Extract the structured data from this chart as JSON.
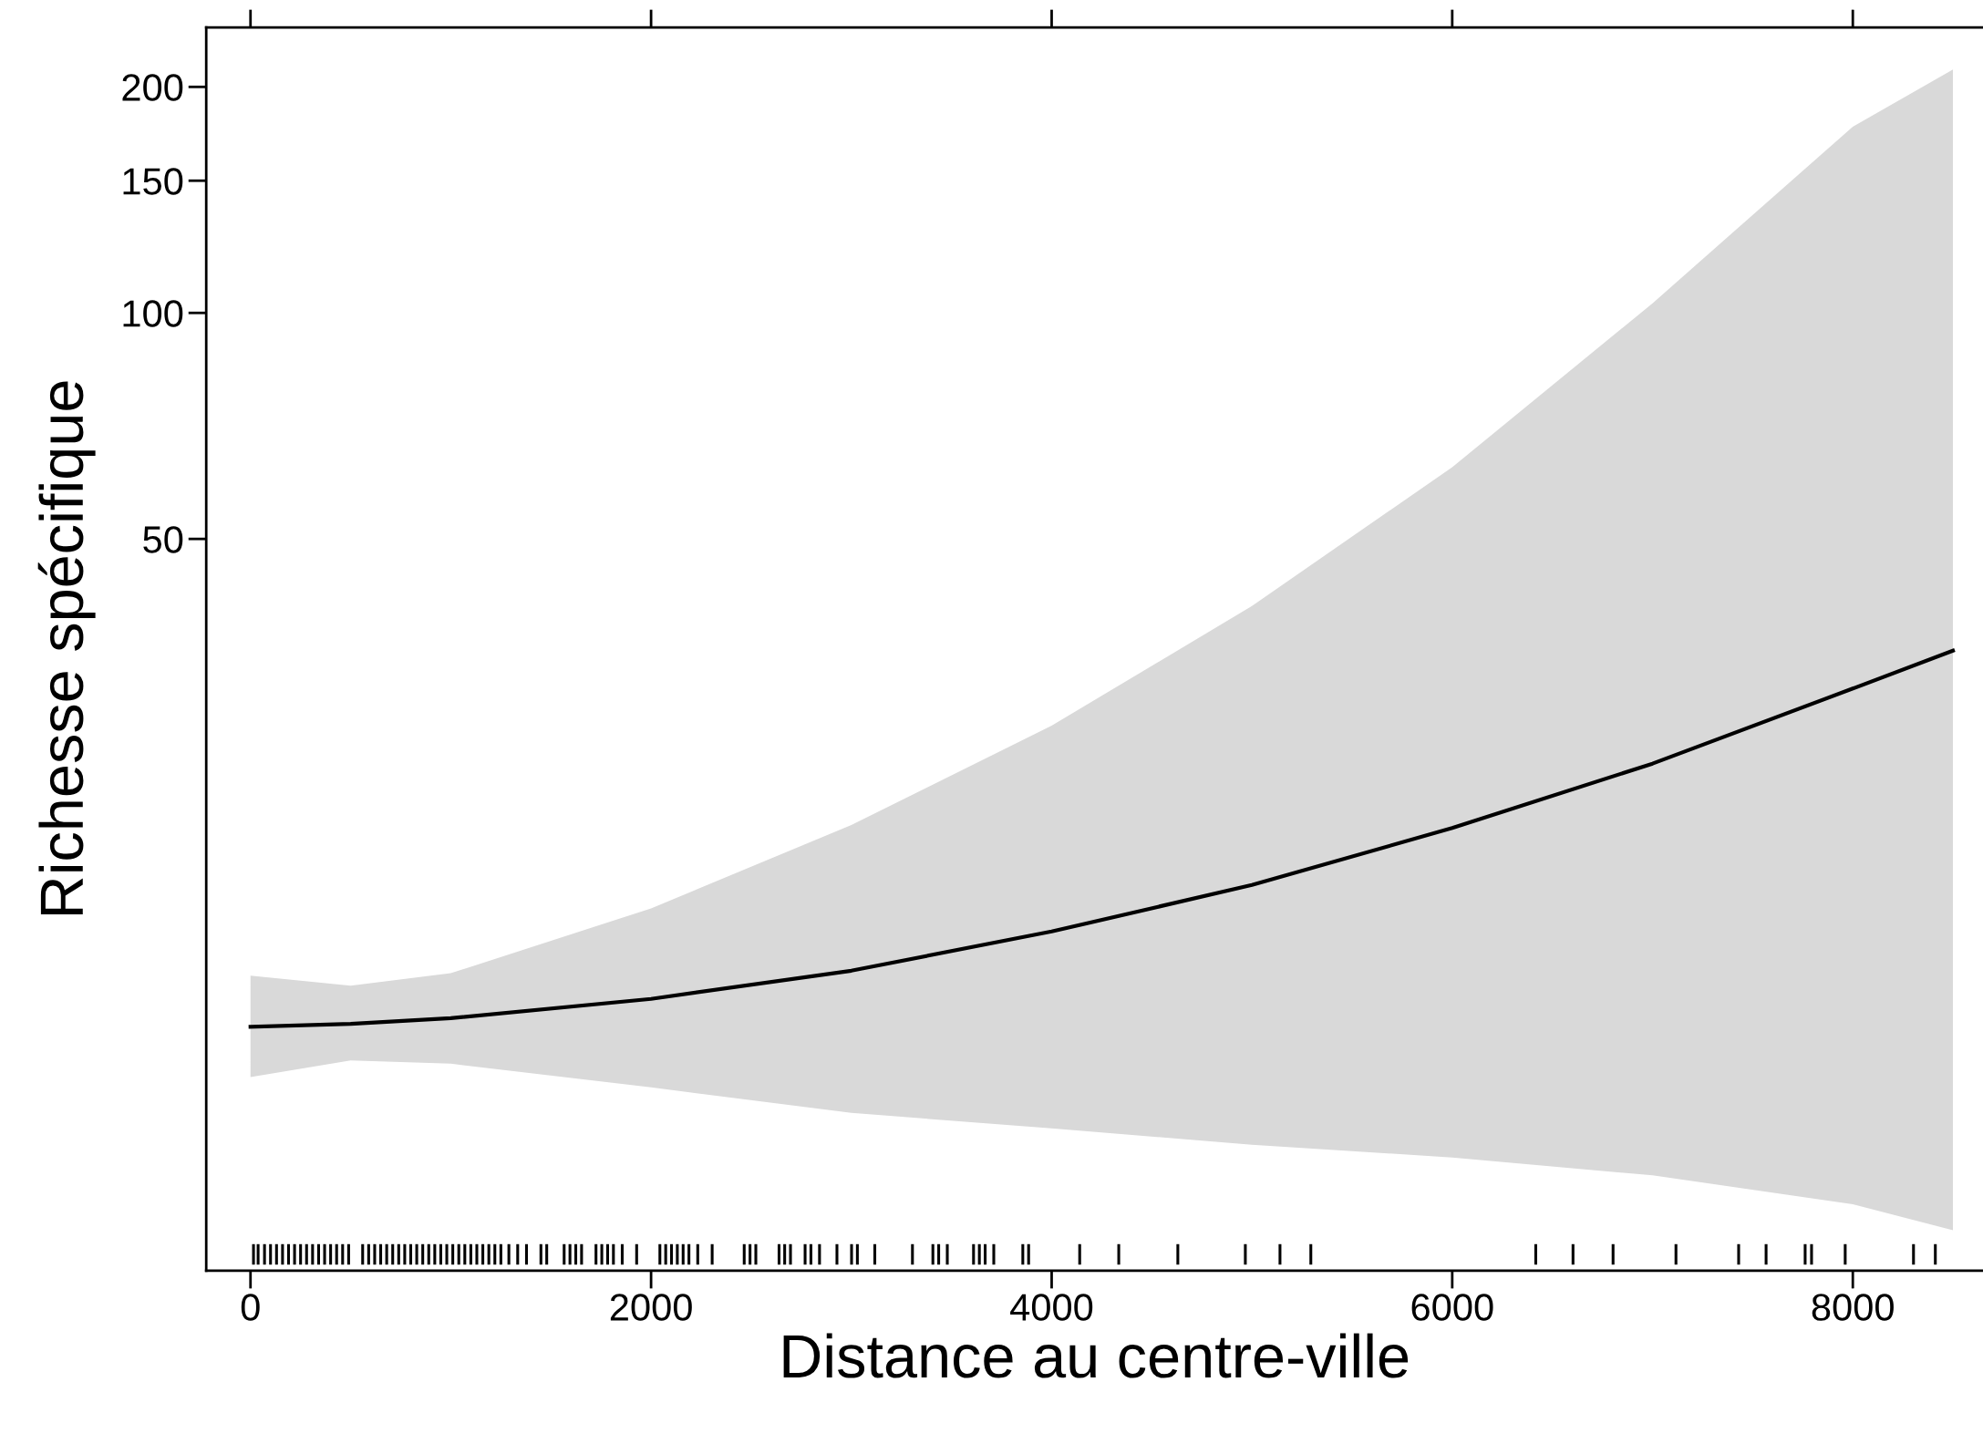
{
  "chart_data": {
    "type": "line",
    "xlabel": "Distance au centre-ville",
    "ylabel": "Richesse spécifique",
    "log": "y",
    "grid": false,
    "xlim": [
      -221,
      8650
    ],
    "ylim": [
      5.3,
      240
    ],
    "xticks": [
      0,
      2000,
      4000,
      6000,
      8000
    ],
    "yticks": [
      50,
      100,
      150,
      200
    ],
    "series": [
      {
        "color": "#000000",
        "x": [
          0,
          500,
          1000,
          2000,
          3000,
          4000,
          5000,
          6000,
          7000,
          8000,
          8500
        ],
        "values": [
          11.2,
          11.3,
          11.5,
          12.2,
          13.3,
          15.0,
          17.3,
          20.6,
          25.1,
          31.6,
          35.5
        ],
        "lower": [
          9.6,
          10.1,
          10.0,
          9.3,
          8.6,
          8.2,
          7.8,
          7.5,
          7.1,
          6.5,
          6.0
        ],
        "upper": [
          13.1,
          12.7,
          13.2,
          16.1,
          20.8,
          28.2,
          40.7,
          62.3,
          103,
          177,
          211
        ]
      },
      {
        "type": "bar",
        "color": "#000000",
        "base": [
          5.4,
          5.4,
          5.4,
          5.4,
          5.4,
          5.4,
          5.4,
          5.4,
          5.4,
          5.4,
          5.4,
          5.4,
          5.4,
          5.4,
          5.4,
          5.4,
          5.4,
          5.4,
          5.4,
          5.4,
          5.4,
          5.4,
          5.4,
          5.4,
          5.4,
          5.4,
          5.4,
          5.4,
          5.4,
          5.4,
          5.4,
          5.4,
          5.4,
          5.4,
          5.4,
          5.4,
          5.4,
          5.4,
          5.4,
          5.4,
          5.4,
          5.4,
          5.4,
          5.4,
          5.4,
          5.4,
          5.4,
          5.4,
          5.4,
          5.4,
          5.4,
          5.4,
          5.4,
          5.4,
          5.4,
          5.4,
          5.4,
          5.4,
          5.4,
          5.4,
          5.4,
          5.4,
          5.4,
          5.4,
          5.4,
          5.4,
          5.4,
          5.4,
          5.4,
          5.4,
          5.4,
          5.4,
          5.4,
          5.4,
          5.4,
          5.4,
          5.4,
          5.4,
          5.4,
          5.4,
          5.4,
          5.4,
          5.4,
          5.4,
          5.4,
          5.4,
          5.4,
          5.4,
          5.4,
          5.4,
          5.4,
          5.4,
          5.4,
          5.4,
          5.4,
          5.4,
          5.4,
          5.4,
          5.4,
          5.4,
          5.4,
          5.4,
          5.4,
          5.4
        ],
        "x": [
          15,
          38,
          70,
          100,
          130,
          160,
          190,
          220,
          250,
          280,
          310,
          340,
          370,
          400,
          430,
          460,
          490,
          560,
          590,
          620,
          650,
          680,
          710,
          740,
          770,
          800,
          830,
          860,
          890,
          920,
          950,
          980,
          1010,
          1040,
          1070,
          1100,
          1130,
          1160,
          1190,
          1220,
          1250,
          1290,
          1334,
          1378,
          1450,
          1479,
          1566,
          1595,
          1624,
          1653,
          1725,
          1754,
          1783,
          1812,
          1856,
          1928,
          2044,
          2073,
          2102,
          2131,
          2160,
          2189,
          2233,
          2305,
          2465,
          2494,
          2523,
          2639,
          2667,
          2696,
          2769,
          2798,
          2841,
          2928,
          3001,
          3030,
          3117,
          3305,
          3407,
          3436,
          3479,
          3610,
          3639,
          3668,
          3711,
          3856,
          3885,
          4140,
          4335,
          4630,
          4967,
          5140,
          5294,
          6417,
          6603,
          6803,
          7117,
          7430,
          7567,
          7762,
          7794,
          7962,
          8303,
          8412
        ],
        "values": [
          0.35,
          0.35,
          0.35,
          0.35,
          0.35,
          0.35,
          0.35,
          0.35,
          0.35,
          0.35,
          0.35,
          0.35,
          0.35,
          0.35,
          0.35,
          0.35,
          0.35,
          0.35,
          0.35,
          0.35,
          0.35,
          0.35,
          0.35,
          0.35,
          0.35,
          0.35,
          0.35,
          0.35,
          0.35,
          0.35,
          0.35,
          0.35,
          0.35,
          0.35,
          0.35,
          0.35,
          0.35,
          0.35,
          0.35,
          0.35,
          0.35,
          0.35,
          0.35,
          0.35,
          0.35,
          0.35,
          0.35,
          0.35,
          0.35,
          0.35,
          0.35,
          0.35,
          0.35,
          0.35,
          0.35,
          0.35,
          0.35,
          0.35,
          0.35,
          0.35,
          0.35,
          0.35,
          0.35,
          0.35,
          0.35,
          0.35,
          0.35,
          0.35,
          0.35,
          0.35,
          0.35,
          0.35,
          0.35,
          0.35,
          0.35,
          0.35,
          0.35,
          0.35,
          0.35,
          0.35,
          0.35,
          0.35,
          0.35,
          0.35,
          0.35,
          0.35,
          0.35,
          0.35,
          0.35,
          0.35,
          0.35,
          0.35,
          0.35,
          0.35,
          0.35,
          0.35,
          0.35,
          0.35,
          0.35,
          0.35,
          0.35,
          0.35,
          0.35,
          0.35
        ]
      }
    ]
  }
}
